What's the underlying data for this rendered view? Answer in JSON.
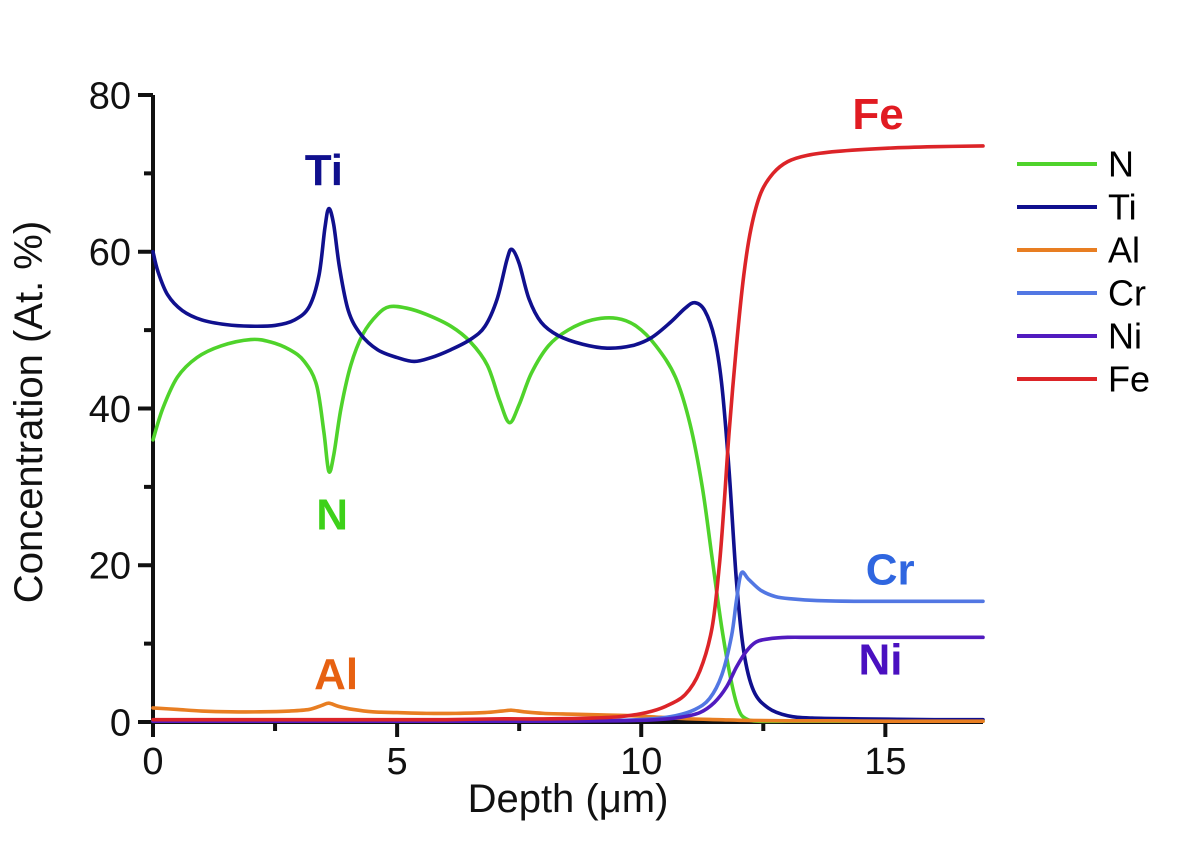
{
  "chart_data": {
    "type": "line",
    "title": "",
    "xlabel": "Depth (μm)",
    "ylabel": "Concentration (At. %)",
    "xlim": [
      0,
      17
    ],
    "ylim": [
      0,
      80
    ],
    "x_ticks": [
      0,
      5,
      10,
      15
    ],
    "x_minor_ticks": [
      2.5,
      7.5,
      12.5
    ],
    "y_ticks": [
      0,
      20,
      40,
      60,
      80
    ],
    "y_minor_ticks": [
      10,
      30,
      50,
      70
    ],
    "grid": false,
    "legend_position": "right-outside",
    "axis_color": "#111111",
    "series": [
      {
        "name": "N",
        "color": "#4fd32b",
        "points": [
          [
            0,
            36
          ],
          [
            0.2,
            40
          ],
          [
            0.5,
            44
          ],
          [
            0.9,
            46.5
          ],
          [
            1.4,
            48
          ],
          [
            2,
            48.8
          ],
          [
            2.4,
            48.5
          ],
          [
            2.8,
            47.5
          ],
          [
            3.1,
            46
          ],
          [
            3.35,
            43
          ],
          [
            3.5,
            37
          ],
          [
            3.6,
            32
          ],
          [
            3.7,
            34
          ],
          [
            3.85,
            40
          ],
          [
            4.05,
            45.5
          ],
          [
            4.3,
            49.5
          ],
          [
            4.6,
            52
          ],
          [
            4.85,
            53
          ],
          [
            5.2,
            52.8
          ],
          [
            5.6,
            52
          ],
          [
            6.1,
            50.5
          ],
          [
            6.5,
            48.5
          ],
          [
            6.85,
            45.5
          ],
          [
            7.1,
            41
          ],
          [
            7.3,
            38.2
          ],
          [
            7.5,
            40.5
          ],
          [
            7.75,
            44.5
          ],
          [
            8.1,
            48
          ],
          [
            8.5,
            50
          ],
          [
            9,
            51.3
          ],
          [
            9.5,
            51.5
          ],
          [
            9.9,
            50.5
          ],
          [
            10.3,
            48
          ],
          [
            10.7,
            44
          ],
          [
            11,
            38
          ],
          [
            11.25,
            30
          ],
          [
            11.45,
            21
          ],
          [
            11.65,
            12
          ],
          [
            11.85,
            5
          ],
          [
            12,
            1.5
          ],
          [
            12.15,
            0.4
          ],
          [
            12.4,
            0.1
          ],
          [
            13,
            0.1
          ],
          [
            14,
            0.1
          ],
          [
            15,
            0.1
          ],
          [
            16,
            0.1
          ],
          [
            17,
            0.1
          ]
        ]
      },
      {
        "name": "Ti",
        "color": "#10108e",
        "points": [
          [
            0,
            60
          ],
          [
            0.1,
            57.5
          ],
          [
            0.3,
            54.5
          ],
          [
            0.6,
            52.5
          ],
          [
            1,
            51.3
          ],
          [
            1.5,
            50.7
          ],
          [
            2,
            50.5
          ],
          [
            2.5,
            50.6
          ],
          [
            2.9,
            51.3
          ],
          [
            3.2,
            53
          ],
          [
            3.4,
            57
          ],
          [
            3.52,
            63
          ],
          [
            3.6,
            65.5
          ],
          [
            3.7,
            63.5
          ],
          [
            3.82,
            58
          ],
          [
            4,
            52.5
          ],
          [
            4.25,
            49.5
          ],
          [
            4.6,
            47.5
          ],
          [
            5,
            46.5
          ],
          [
            5.35,
            46
          ],
          [
            5.7,
            46.5
          ],
          [
            6.1,
            47.5
          ],
          [
            6.5,
            48.8
          ],
          [
            6.8,
            50.5
          ],
          [
            7.05,
            54
          ],
          [
            7.25,
            59
          ],
          [
            7.35,
            60.3
          ],
          [
            7.5,
            58.5
          ],
          [
            7.7,
            54
          ],
          [
            7.95,
            51
          ],
          [
            8.3,
            49.3
          ],
          [
            8.8,
            48.2
          ],
          [
            9.3,
            47.7
          ],
          [
            9.8,
            48
          ],
          [
            10.2,
            49
          ],
          [
            10.6,
            51
          ],
          [
            10.9,
            52.8
          ],
          [
            11.1,
            53.5
          ],
          [
            11.3,
            52.5
          ],
          [
            11.5,
            49
          ],
          [
            11.65,
            43
          ],
          [
            11.8,
            32
          ],
          [
            11.95,
            18
          ],
          [
            12.1,
            9
          ],
          [
            12.3,
            4
          ],
          [
            12.6,
            1.8
          ],
          [
            13,
            0.8
          ],
          [
            13.5,
            0.5
          ],
          [
            14.5,
            0.4
          ],
          [
            16,
            0.3
          ],
          [
            17,
            0.3
          ]
        ]
      },
      {
        "name": "Al",
        "color": "#e87e22",
        "points": [
          [
            0,
            1.8
          ],
          [
            0.5,
            1.6
          ],
          [
            1,
            1.4
          ],
          [
            1.6,
            1.3
          ],
          [
            2.2,
            1.3
          ],
          [
            2.8,
            1.4
          ],
          [
            3.2,
            1.6
          ],
          [
            3.45,
            2.1
          ],
          [
            3.6,
            2.4
          ],
          [
            3.8,
            2
          ],
          [
            4.1,
            1.6
          ],
          [
            4.5,
            1.3
          ],
          [
            5,
            1.2
          ],
          [
            5.6,
            1.1
          ],
          [
            6.2,
            1.1
          ],
          [
            6.8,
            1.2
          ],
          [
            7.15,
            1.4
          ],
          [
            7.35,
            1.5
          ],
          [
            7.6,
            1.3
          ],
          [
            8,
            1.1
          ],
          [
            8.6,
            1
          ],
          [
            9.2,
            0.9
          ],
          [
            9.8,
            0.8
          ],
          [
            10.4,
            0.6
          ],
          [
            11,
            0.4
          ],
          [
            11.6,
            0.3
          ],
          [
            12.2,
            0.2
          ],
          [
            13,
            0.15
          ],
          [
            14,
            0.15
          ],
          [
            15,
            0.1
          ],
          [
            16,
            0.1
          ],
          [
            17,
            0.1
          ]
        ]
      },
      {
        "name": "Cr",
        "color": "#5277e3",
        "points": [
          [
            0,
            0.1
          ],
          [
            2,
            0.1
          ],
          [
            4,
            0.1
          ],
          [
            6,
            0.1
          ],
          [
            8,
            0.1
          ],
          [
            9.5,
            0.2
          ],
          [
            10.2,
            0.4
          ],
          [
            10.7,
            0.8
          ],
          [
            11.1,
            1.6
          ],
          [
            11.4,
            3
          ],
          [
            11.65,
            6
          ],
          [
            11.85,
            11
          ],
          [
            11.95,
            15.5
          ],
          [
            12.05,
            19
          ],
          [
            12.2,
            18.2
          ],
          [
            12.45,
            16.8
          ],
          [
            12.75,
            16
          ],
          [
            13.1,
            15.7
          ],
          [
            13.6,
            15.5
          ],
          [
            14.5,
            15.4
          ],
          [
            15.5,
            15.4
          ],
          [
            17,
            15.4
          ]
        ]
      },
      {
        "name": "Ni",
        "color": "#511bbf",
        "points": [
          [
            0,
            0.1
          ],
          [
            2,
            0.1
          ],
          [
            4,
            0.1
          ],
          [
            6,
            0.1
          ],
          [
            8,
            0.1
          ],
          [
            9.5,
            0.15
          ],
          [
            10.3,
            0.3
          ],
          [
            10.8,
            0.6
          ],
          [
            11.2,
            1.2
          ],
          [
            11.5,
            2.5
          ],
          [
            11.75,
            4.5
          ],
          [
            11.95,
            7
          ],
          [
            12.15,
            9
          ],
          [
            12.35,
            10.2
          ],
          [
            12.6,
            10.6
          ],
          [
            13,
            10.8
          ],
          [
            13.5,
            10.8
          ],
          [
            14.5,
            10.8
          ],
          [
            16,
            10.8
          ],
          [
            17,
            10.8
          ]
        ]
      },
      {
        "name": "Fe",
        "color": "#dc2428",
        "points": [
          [
            0,
            0.3
          ],
          [
            1,
            0.3
          ],
          [
            2,
            0.3
          ],
          [
            3,
            0.3
          ],
          [
            4,
            0.3
          ],
          [
            5,
            0.3
          ],
          [
            6,
            0.3
          ],
          [
            7,
            0.4
          ],
          [
            8,
            0.4
          ],
          [
            9,
            0.5
          ],
          [
            9.6,
            0.7
          ],
          [
            10.1,
            1.2
          ],
          [
            10.5,
            2
          ],
          [
            10.9,
            3.5
          ],
          [
            11.2,
            6.5
          ],
          [
            11.45,
            12
          ],
          [
            11.6,
            20
          ],
          [
            11.7,
            28
          ],
          [
            11.8,
            37
          ],
          [
            11.95,
            48
          ],
          [
            12.1,
            57
          ],
          [
            12.25,
            63
          ],
          [
            12.45,
            67.5
          ],
          [
            12.7,
            70
          ],
          [
            13,
            71.5
          ],
          [
            13.4,
            72.3
          ],
          [
            14,
            72.8
          ],
          [
            15,
            73.2
          ],
          [
            16,
            73.4
          ],
          [
            17,
            73.5
          ]
        ]
      }
    ],
    "annotations": [
      {
        "text": "Ti",
        "x": 3.5,
        "y": 70.5,
        "color": "#10108e"
      },
      {
        "text": "N",
        "x": 3.67,
        "y": 26.5,
        "color": "#3dd119"
      },
      {
        "text": "Al",
        "x": 3.75,
        "y": 6.2,
        "color": "#e76111"
      },
      {
        "text": "Fe",
        "x": 14.85,
        "y": 77.6,
        "color": "#e11b22"
      },
      {
        "text": "Cr",
        "x": 15.1,
        "y": 19.5,
        "color": "#2f66e0"
      },
      {
        "text": "Ni",
        "x": 14.9,
        "y": 8.0,
        "color": "#4a10c0"
      }
    ],
    "legend": [
      {
        "label": "N",
        "color": "#4fd32b"
      },
      {
        "label": "Ti",
        "color": "#10108e"
      },
      {
        "label": "Al",
        "color": "#e87e22"
      },
      {
        "label": "Cr",
        "color": "#5277e3"
      },
      {
        "label": "Ni",
        "color": "#511bbf"
      },
      {
        "label": "Fe",
        "color": "#dc2428"
      }
    ]
  }
}
